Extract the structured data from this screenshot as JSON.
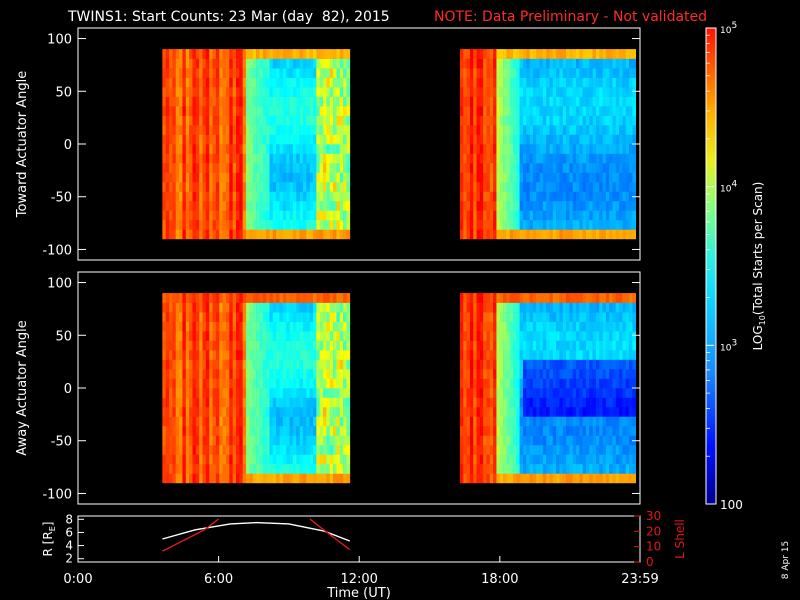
{
  "title": "TWINS1: Start Counts: 23 Mar (day  82), 2015",
  "note": "NOTE: Data Preliminary - Not validated",
  "date_stamp": "8 Apr 15",
  "colors": {
    "note": "#ff2a2a",
    "background": "#000000",
    "axes": "#ffffff",
    "overlay_r": "#ffffff",
    "overlay_lshell": "#e01818"
  },
  "chart_data": [
    {
      "type": "heatmap",
      "ylabel": "Toward Actuator Angle",
      "xlim_hours": [
        0,
        23.983
      ],
      "ylim": [
        -110,
        110
      ],
      "yticks": [
        -100,
        -50,
        0,
        50,
        100
      ],
      "data_windows_hours": [
        [
          3.6,
          11.6
        ],
        [
          16.3,
          23.8
        ]
      ],
      "angle_range": [
        -90,
        90
      ]
    },
    {
      "type": "heatmap",
      "ylabel": "Away Actuator Angle",
      "xlim_hours": [
        0,
        23.983
      ],
      "ylim": [
        -110,
        110
      ],
      "yticks": [
        -100,
        -50,
        0,
        50,
        100
      ],
      "data_windows_hours": [
        [
          3.6,
          11.6
        ],
        [
          16.3,
          23.8
        ]
      ],
      "angle_range": [
        -90,
        90
      ]
    },
    {
      "type": "line",
      "ylabel": "R [R",
      "ylabel_sub": "E",
      "ylabel_close": "]",
      "y2label": "L Shell",
      "xlabel": "Time (UT)",
      "xticks": [
        "0:00",
        "6:00",
        "12:00",
        "18:00",
        "23:59"
      ],
      "xtick_hours": [
        0,
        6,
        12,
        18,
        23.983
      ],
      "ylim": [
        1.5,
        8.5
      ],
      "yticks": [
        2,
        4,
        6,
        8
      ],
      "y2lim": [
        0,
        30
      ],
      "y2ticks": [
        0,
        10,
        20,
        30
      ],
      "series": [
        {
          "x": [
            3.6,
            5.0,
            6.5,
            7.6,
            9.0,
            10.5,
            11.6
          ],
          "y": [
            5.0,
            6.4,
            7.3,
            7.5,
            7.3,
            6.2,
            4.7
          ]
        },
        {
          "x": [
            3.6,
            4.5,
            5.4,
            6.0
          ],
          "y2": [
            7,
            14,
            21,
            28
          ]
        },
        {
          "x": [
            9.9,
            10.4,
            11.0,
            11.6
          ],
          "y2": [
            28,
            22,
            15,
            8
          ]
        }
      ]
    }
  ],
  "colorbar": {
    "label": "LOG",
    "label_sub": "10",
    "label_rest": "(Total Starts per Scan)",
    "scale": "log",
    "range": [
      100,
      100000
    ],
    "ticks": [
      {
        "value": 100,
        "label": "100"
      },
      {
        "value": 1000,
        "base": "10",
        "exp": "3"
      },
      {
        "value": 10000,
        "base": "10",
        "exp": "4"
      },
      {
        "value": 100000,
        "base": "10",
        "exp": "5"
      }
    ]
  }
}
